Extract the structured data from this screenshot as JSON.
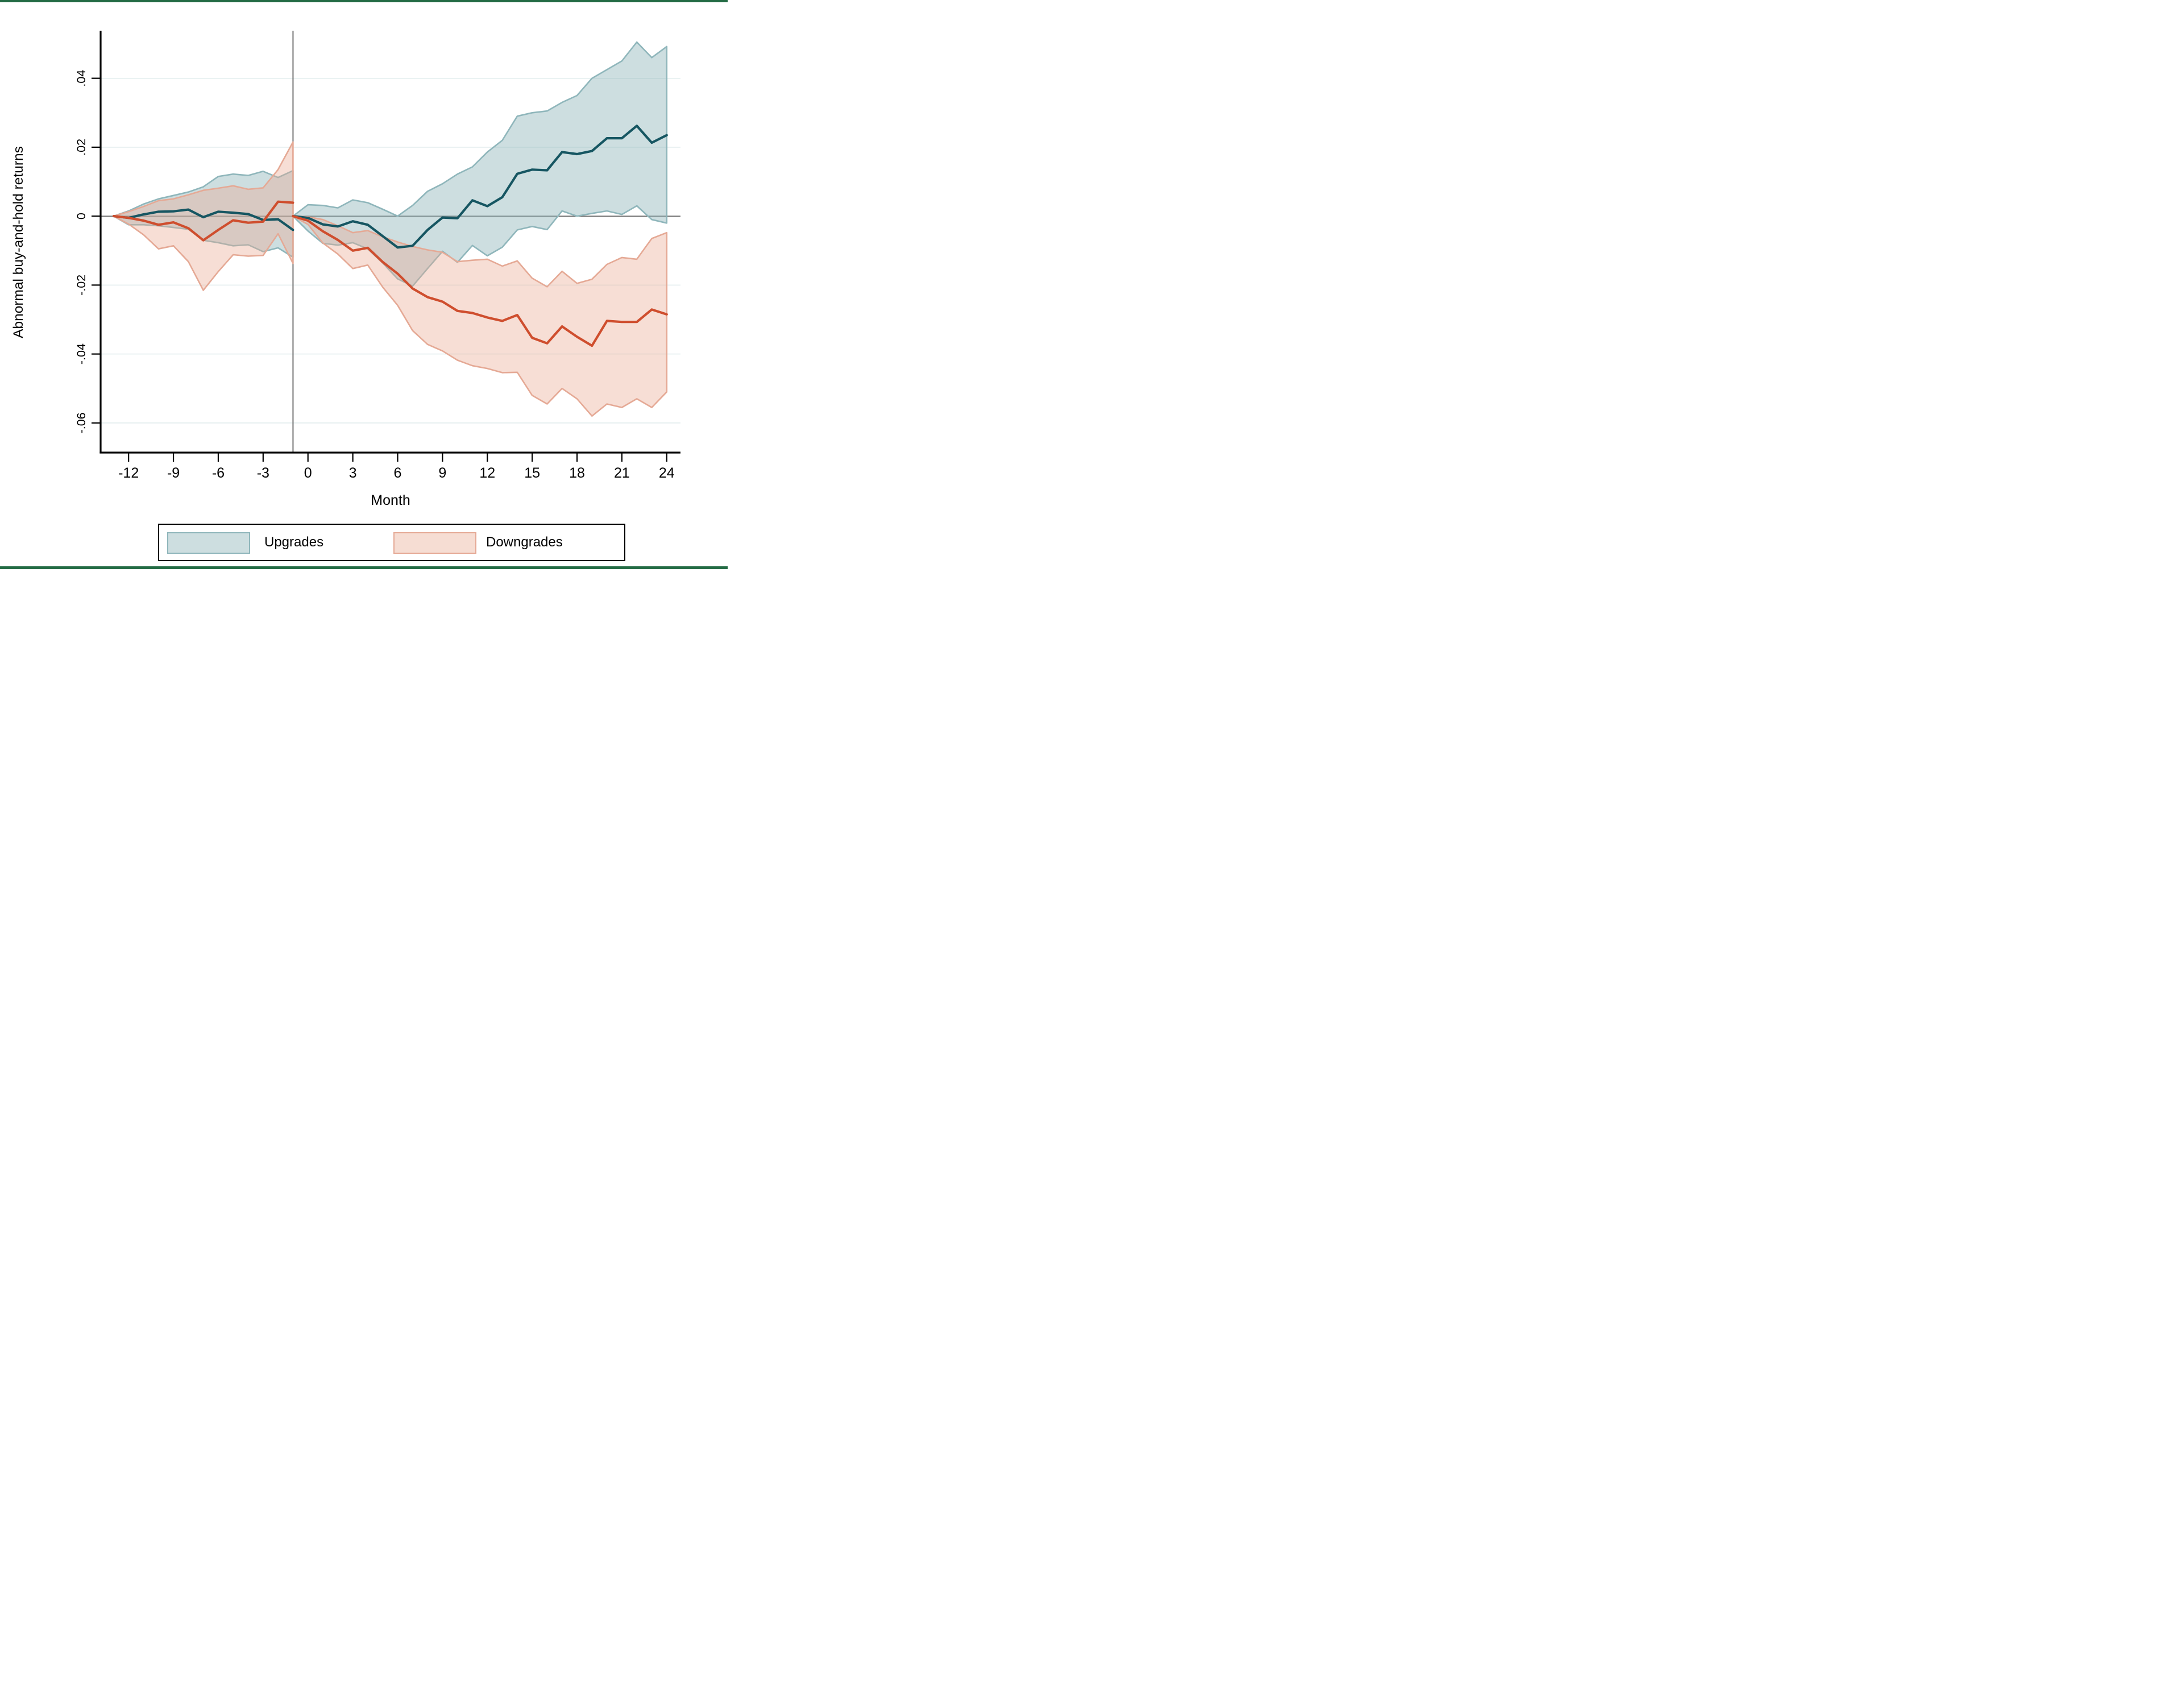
{
  "page": {
    "border_color": "#236b44",
    "background": "#ffffff"
  },
  "chart_data": {
    "type": "line",
    "subtype": "event-study line chart with confidence-interval area bands",
    "title": "",
    "xlabel": "Month",
    "ylabel": "Abnormal buy-and-hold returns",
    "xlim": [
      -13.87,
      24.92
    ],
    "ylim": [
      -0.0686,
      0.0538
    ],
    "grid": "horizontal gridlines at labeled y ticks (except 0)",
    "zero_line_y": 0,
    "event_line_x": -1,
    "x_ticks": [
      -12,
      -9,
      -6,
      -3,
      0,
      3,
      6,
      9,
      12,
      15,
      18,
      21,
      24
    ],
    "y_ticks": [
      {
        "value": 0.04,
        "label": ".04"
      },
      {
        "value": 0.02,
        "label": ".02"
      },
      {
        "value": 0,
        "label": "0"
      },
      {
        "value": -0.02,
        "label": "-.02"
      },
      {
        "value": -0.04,
        "label": "-.04"
      },
      {
        "value": -0.06,
        "label": "-.06"
      }
    ],
    "colors": {
      "upgrades_line": "#165662",
      "upgrades_band_fill": "rgba(145,181,187,0.45)",
      "upgrades_band_edge": "#8fb6bb",
      "downgrades_line": "#cf4e2e",
      "downgrades_band_fill": "rgba(233,168,145,0.38)",
      "downgrades_band_edge": "#e5a995",
      "gridline": "#dfebec",
      "zero_line": "#636363",
      "event_line": "#6f6f6f",
      "axis": "#000000"
    },
    "legend": {
      "position": "bottom-center",
      "entries": [
        "Upgrades",
        "Downgrades"
      ]
    },
    "series": [
      {
        "name": "Upgrades",
        "segments": [
          {
            "x": [
              -13,
              -12,
              -11,
              -10,
              -9,
              -8,
              -7,
              -6,
              -5,
              -4,
              -3,
              -2,
              -1
            ],
            "mean": [
              0,
              -0.0005,
              0.0005,
              0.0013,
              0.0014,
              0.0019,
              -0.0003,
              0.0013,
              0.001,
              0.0006,
              -0.0011,
              -0.0009,
              -0.004
            ],
            "upper": [
              0,
              0.0015,
              0.0035,
              0.005,
              0.006,
              0.007,
              0.0085,
              0.0115,
              0.0122,
              0.0118,
              0.013,
              0.0112,
              0.0132
            ],
            "lower": [
              0,
              -0.0025,
              -0.0025,
              -0.0028,
              -0.0033,
              -0.0038,
              -0.007,
              -0.0077,
              -0.0086,
              -0.0083,
              -0.0103,
              -0.0092,
              -0.0119
            ]
          },
          {
            "x": [
              -1,
              0,
              1,
              2,
              3,
              4,
              5,
              6,
              7,
              8,
              9,
              10,
              11,
              12,
              13,
              14,
              15,
              16,
              17,
              18,
              19,
              20,
              21,
              22,
              23,
              24
            ],
            "mean": [
              0,
              -0.0005,
              -0.0024,
              -0.003,
              -0.0015,
              -0.0025,
              -0.0058,
              -0.0091,
              -0.0086,
              -0.004,
              -0.0004,
              -0.0006,
              0.0046,
              0.0029,
              0.0055,
              0.0123,
              0.0135,
              0.0133,
              0.0186,
              0.018,
              0.0189,
              0.0226,
              0.0226,
              0.0262,
              0.0213,
              0.0235
            ],
            "upper": [
              0,
              0.0033,
              0.0031,
              0.0024,
              0.0047,
              0.0039,
              0.002,
              0.0,
              0.0031,
              0.0072,
              0.0094,
              0.0122,
              0.0143,
              0.0186,
              0.022,
              0.029,
              0.03,
              0.0305,
              0.033,
              0.035,
              0.04,
              0.0425,
              0.045,
              0.0505,
              0.046,
              0.0492
            ],
            "lower": [
              0,
              -0.0043,
              -0.0079,
              -0.0084,
              -0.0077,
              -0.0095,
              -0.0136,
              -0.0182,
              -0.0203,
              -0.0152,
              -0.0102,
              -0.0134,
              -0.0085,
              -0.0115,
              -0.009,
              -0.004,
              -0.003,
              -0.0039,
              0.0015,
              0.0,
              0.0008,
              0.0015,
              0.0005,
              0.003,
              -0.001,
              -0.002
            ]
          }
        ]
      },
      {
        "name": "Downgrades",
        "segments": [
          {
            "x": [
              -13,
              -12,
              -11,
              -10,
              -9,
              -8,
              -7,
              -6,
              -5,
              -4,
              -3,
              -2,
              -1
            ],
            "mean": [
              0,
              -0.0005,
              -0.0013,
              -0.0025,
              -0.0018,
              -0.0035,
              -0.007,
              -0.004,
              -0.0012,
              -0.0019,
              -0.0016,
              0.0042,
              0.0039
            ],
            "upper": [
              0,
              0.0013,
              0.0028,
              0.0045,
              0.005,
              0.0062,
              0.0075,
              0.0081,
              0.0088,
              0.0078,
              0.0082,
              0.0135,
              0.0215
            ],
            "lower": [
              0,
              -0.0023,
              -0.0054,
              -0.0095,
              -0.0086,
              -0.0132,
              -0.0215,
              -0.0161,
              -0.0112,
              -0.0116,
              -0.0114,
              -0.0051,
              -0.0137
            ]
          },
          {
            "x": [
              -1,
              0,
              1,
              2,
              3,
              4,
              5,
              6,
              7,
              8,
              9,
              10,
              11,
              12,
              13,
              14,
              15,
              16,
              17,
              18,
              19,
              20,
              21,
              22,
              23,
              24
            ],
            "mean": [
              0,
              -0.0013,
              -0.0044,
              -0.0069,
              -0.01,
              -0.0092,
              -0.0133,
              -0.0167,
              -0.021,
              -0.0235,
              -0.0248,
              -0.0275,
              -0.0281,
              -0.0294,
              -0.0304,
              -0.0287,
              -0.0353,
              -0.0369,
              -0.032,
              -0.035,
              -0.0376,
              -0.0304,
              -0.0307,
              -0.0307,
              -0.0271,
              -0.0285
            ],
            "upper": [
              0,
              -0.0002,
              -0.001,
              -0.0028,
              -0.0048,
              -0.0042,
              -0.006,
              -0.0075,
              -0.0088,
              -0.0098,
              -0.0105,
              -0.0132,
              -0.0128,
              -0.0125,
              -0.0145,
              -0.013,
              -0.018,
              -0.0205,
              -0.016,
              -0.0195,
              -0.0183,
              -0.014,
              -0.012,
              -0.0125,
              -0.0065,
              -0.0048
            ],
            "lower": [
              0,
              -0.0024,
              -0.0078,
              -0.011,
              -0.0152,
              -0.0142,
              -0.0206,
              -0.0259,
              -0.0332,
              -0.0372,
              -0.0391,
              -0.0418,
              -0.0434,
              -0.0442,
              -0.0454,
              -0.0453,
              -0.052,
              -0.0545,
              -0.05,
              -0.053,
              -0.058,
              -0.0545,
              -0.0555,
              -0.053,
              -0.0555,
              -0.051
            ]
          }
        ]
      }
    ]
  }
}
